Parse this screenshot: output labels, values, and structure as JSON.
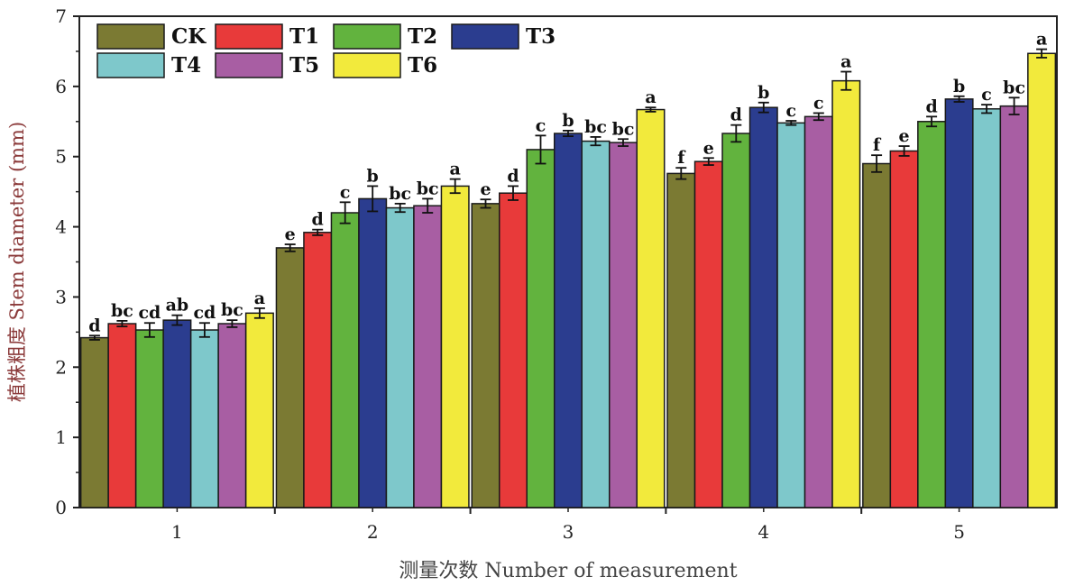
{
  "chart_data": {
    "type": "bar",
    "title": "",
    "xlabel": "测量次数 Number of measurement",
    "ylabel": "植株粗度 Stem diameter (mm)",
    "categories": [
      "1",
      "2",
      "3",
      "4",
      "5"
    ],
    "ylim": [
      0,
      7
    ],
    "yticks": [
      "0",
      "1",
      "2",
      "3",
      "4",
      "5",
      "6",
      "7"
    ],
    "grid": false,
    "legend_position": "top-left",
    "series": [
      {
        "name": "CK",
        "color": "#7b7a33",
        "values": [
          2.42,
          3.7,
          4.33,
          4.76,
          4.9
        ],
        "errors": [
          0.03,
          0.05,
          0.06,
          0.08,
          0.12
        ],
        "labels": [
          "d",
          "e",
          "e",
          "f",
          "f"
        ]
      },
      {
        "name": "T1",
        "color": "#e83a3a",
        "values": [
          2.62,
          3.92,
          4.48,
          4.93,
          5.08
        ],
        "errors": [
          0.04,
          0.04,
          0.1,
          0.05,
          0.07
        ],
        "labels": [
          "bc",
          "d",
          "d",
          "e",
          "e"
        ]
      },
      {
        "name": "T2",
        "color": "#62b33e",
        "values": [
          2.53,
          4.2,
          5.1,
          5.33,
          5.5
        ],
        "errors": [
          0.1,
          0.15,
          0.2,
          0.12,
          0.07
        ],
        "labels": [
          "cd",
          "c",
          "c",
          "d",
          "d"
        ]
      },
      {
        "name": "T3",
        "color": "#2b3d8f",
        "values": [
          2.67,
          4.4,
          5.33,
          5.7,
          5.82
        ],
        "errors": [
          0.07,
          0.18,
          0.04,
          0.07,
          0.04
        ],
        "labels": [
          "ab",
          "b",
          "b",
          "b",
          "b"
        ]
      },
      {
        "name": "T4",
        "color": "#7ec8cb",
        "values": [
          2.53,
          4.27,
          5.22,
          5.48,
          5.68
        ],
        "errors": [
          0.1,
          0.06,
          0.06,
          0.03,
          0.06
        ],
        "labels": [
          "cd",
          "bc",
          "bc",
          "c",
          "c"
        ]
      },
      {
        "name": "T5",
        "color": "#a85ea3",
        "values": [
          2.62,
          4.3,
          5.2,
          5.57,
          5.72
        ],
        "errors": [
          0.05,
          0.1,
          0.05,
          0.05,
          0.12
        ],
        "labels": [
          "bc",
          "bc",
          "bc",
          "c",
          "bc"
        ]
      },
      {
        "name": "T6",
        "color": "#f2ea3c",
        "values": [
          2.77,
          4.58,
          5.67,
          6.08,
          6.47
        ],
        "errors": [
          0.07,
          0.1,
          0.03,
          0.13,
          0.06
        ],
        "labels": [
          "a",
          "a",
          "a",
          "a",
          "a"
        ]
      }
    ]
  }
}
